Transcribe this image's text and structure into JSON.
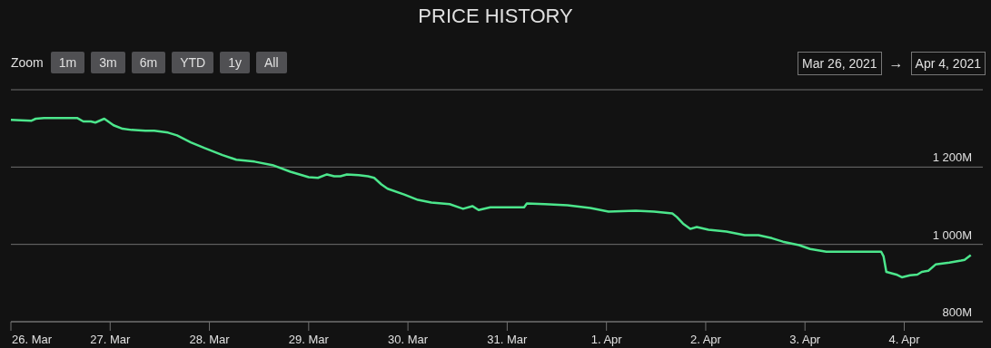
{
  "chart_data": {
    "type": "line",
    "title": "PRICE HISTORY",
    "annotations": [
      "Zoom",
      "1m",
      "3m",
      "6m",
      "YTD",
      "1y",
      "All",
      "Mar 26, 2021",
      "→",
      "Apr 4, 2021"
    ],
    "x": [
      "2021-03-26T00:00",
      "2021-03-26T05:00",
      "2021-03-26T06:00",
      "2021-03-26T08:00",
      "2021-03-26T16:00",
      "2021-03-26T17:30",
      "2021-03-26T19:20",
      "2021-03-26T20:25",
      "2021-03-26T22:35",
      "2021-03-27T00:50",
      "2021-03-27T03:00",
      "2021-03-27T05:10",
      "2021-03-27T08:30",
      "2021-03-27T10:40",
      "2021-03-27T14:00",
      "2021-03-27T16:10",
      "2021-03-27T19:30",
      "2021-03-27T22:50",
      "2021-03-28T03:10",
      "2021-03-28T06:30",
      "2021-03-28T10:55",
      "2021-03-28T15:15",
      "2021-03-28T19:35",
      "2021-03-29T00:00",
      "2021-03-29T02:15",
      "2021-03-29T04:25",
      "2021-03-29T06:10",
      "2021-03-29T07:40",
      "2021-03-29T09:15",
      "2021-03-29T12:05",
      "2021-03-29T14:20",
      "2021-03-29T15:50",
      "2021-03-29T17:35",
      "2021-03-29T19:05",
      "2021-03-29T23:05",
      "2021-03-30T02:25",
      "2021-03-30T05:40",
      "2021-03-30T10:05",
      "2021-03-30T13:20",
      "2021-03-30T15:35",
      "2021-03-30T17:05",
      "2021-03-30T19:55",
      "2021-03-31T00:20",
      "2021-03-31T04:05",
      "2021-03-31T04:45",
      "2021-03-31T09:05",
      "2021-03-31T14:35",
      "2021-03-31T20:05",
      "2021-04-01T00:30",
      "2021-04-01T07:05",
      "2021-04-01T11:30",
      "2021-04-01T15:55",
      "2021-04-01T17:00",
      "2021-04-01T18:30",
      "2021-04-01T20:15",
      "2021-04-01T21:50",
      "2021-04-02T00:40",
      "2021-04-02T05:00",
      "2021-04-02T09:25",
      "2021-04-02T12:45",
      "2021-04-02T16:00",
      "2021-04-02T18:40",
      "2021-04-02T22:35",
      "2021-04-03T01:15",
      "2021-04-03T05:10",
      "2021-04-03T11:50",
      "2021-04-03T18:25",
      "2021-04-03T19:00",
      "2021-04-03T19:40",
      "2021-04-03T22:05",
      "2021-04-03T23:25",
      "2021-04-04T01:25",
      "2021-04-04T03:10",
      "2021-04-04T04:15",
      "2021-04-04T05:50",
      "2021-04-04T07:35",
      "2021-04-04T10:55",
      "2021-04-04T13:45",
      "2021-04-04T14:35",
      "2021-04-04T16:05"
    ],
    "series": [
      {
        "color": "#4ce68c",
        "values": [
          1322,
          1320,
          1325,
          1327,
          1327,
          1318,
          1318,
          1315,
          1325,
          1308,
          1299,
          1296,
          1294,
          1294,
          1289,
          1282,
          1264,
          1249,
          1231,
          1219,
          1214,
          1205,
          1188,
          1174,
          1172,
          1181,
          1176,
          1176,
          1181,
          1179,
          1176,
          1172,
          1155,
          1144,
          1129,
          1115,
          1108,
          1104,
          1092,
          1099,
          1089,
          1096,
          1096,
          1096,
          1106,
          1104,
          1101,
          1094,
          1085,
          1087,
          1085,
          1080,
          1071,
          1054,
          1040,
          1045,
          1038,
          1033,
          1024,
          1024,
          1016,
          1007,
          998,
          988,
          981,
          981,
          981,
          969,
          929,
          922,
          915,
          920,
          922,
          929,
          932,
          948,
          953,
          958,
          960,
          972
        ]
      }
    ],
    "xlim": [
      "2021-03-26T00:00",
      "2021-04-04T19:00"
    ],
    "xticks": [
      {
        "value": "2021-03-26",
        "label": "26. Mar"
      },
      {
        "value": "2021-03-27",
        "label": "27. Mar"
      },
      {
        "value": "2021-03-28",
        "label": "28. Mar"
      },
      {
        "value": "2021-03-29",
        "label": "29. Mar"
      },
      {
        "value": "2021-03-30",
        "label": "30. Mar"
      },
      {
        "value": "2021-03-31",
        "label": "31. Mar"
      },
      {
        "value": "2021-04-01",
        "label": "1. Apr"
      },
      {
        "value": "2021-04-02",
        "label": "2. Apr"
      },
      {
        "value": "2021-04-03",
        "label": "3. Apr"
      },
      {
        "value": "2021-04-04",
        "label": "4. Apr"
      }
    ],
    "ylim": [
      800,
      1400
    ],
    "yticks": [
      {
        "value": 800,
        "label": "800M"
      },
      {
        "value": 1000,
        "label": "1 000M"
      },
      {
        "value": 1200,
        "label": "1 200M"
      },
      {
        "value": 1400,
        "label": null
      }
    ],
    "grid": "y"
  }
}
